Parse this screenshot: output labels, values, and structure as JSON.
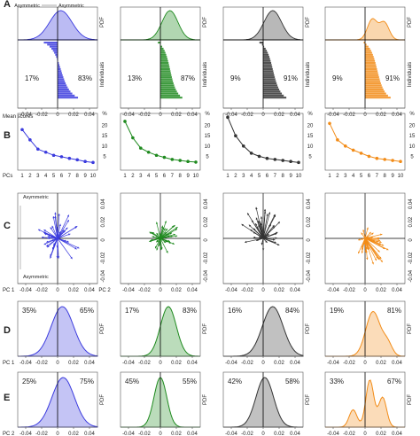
{
  "colors": {
    "p1": "#3b3bde",
    "p2": "#1f8a1f",
    "p3": "#333333",
    "p4": "#f28c18"
  },
  "labels": {
    "rows": [
      "A",
      "B",
      "C",
      "D",
      "E"
    ],
    "pdf": "PDF",
    "individuals": "Individuals",
    "mean_scores": "Mean scores",
    "pcs": "PCs",
    "pc1": "PC 1",
    "pc2": "PC 2",
    "percent": "%",
    "asym_left": "Asymmetric",
    "asym_right": "Asymmetric",
    "asym_top": "Asymmetric",
    "asym_bottom": "Asymmetric"
  },
  "chart_data": [
    {
      "panel": "A",
      "type": "area",
      "xlim": [
        -0.05,
        0.05
      ],
      "xticks": [
        -0.04,
        -0.02,
        0,
        0.02,
        0.04
      ],
      "tick_labels": [
        "-0.04",
        "-0.02",
        "0",
        "0.02",
        "0.04"
      ],
      "left_percent": [
        "17%",
        "13%",
        "9%",
        "9%"
      ],
      "right_percent": [
        "83%",
        "87%",
        "91%",
        "91%"
      ],
      "xlabel": "Mean scores",
      "ylabel_top": "PDF",
      "ylabel_bottom": "Individuals"
    },
    {
      "panel": "B",
      "type": "line",
      "x": [
        1,
        2,
        3,
        4,
        5,
        6,
        7,
        8,
        9,
        10
      ],
      "xticks": [
        "1",
        "2",
        "3",
        "4",
        "5",
        "6",
        "7",
        "8",
        "9",
        "10"
      ],
      "ylim": [
        0,
        25
      ],
      "yticks": [
        "5",
        "10",
        "15",
        "20"
      ],
      "xlabel": "PCs",
      "ylabel": "%",
      "series": [
        {
          "values": [
            18,
            13,
            8.5,
            7,
            5.5,
            4.8,
            4,
            3.3,
            2.5,
            2
          ]
        },
        {
          "values": [
            22,
            14,
            9,
            7,
            5.5,
            4.5,
            3.5,
            3,
            2.5,
            2.2
          ]
        },
        {
          "values": [
            24,
            15,
            10,
            6.5,
            5,
            4,
            3.5,
            3,
            2.5,
            2
          ]
        },
        {
          "values": [
            21,
            13,
            10,
            8,
            6.5,
            5,
            4,
            3.5,
            3,
            2.5
          ]
        }
      ]
    },
    {
      "panel": "C",
      "type": "scatter",
      "xlim": [
        -0.05,
        0.05
      ],
      "ylim": [
        -0.05,
        0.05
      ],
      "xticks": [
        "-0.04",
        "-0.02",
        "0",
        "0.02",
        "0.04"
      ],
      "yticks": [
        "0.04",
        "0.02",
        "0",
        "-0.02",
        "-0.04"
      ],
      "xlabel": "PC 1",
      "ylabel": "PC 2"
    },
    {
      "panel": "D",
      "type": "area",
      "xticks": [
        "-0.04",
        "-0.02",
        "0",
        "0.02",
        "0.04"
      ],
      "left_percent": [
        "35%",
        "17%",
        "16%",
        "19%"
      ],
      "right_percent": [
        "65%",
        "83%",
        "84%",
        "81%"
      ],
      "xlabel": "PC 1",
      "ylabel": "PDF"
    },
    {
      "panel": "E",
      "type": "area",
      "xticks": [
        "-0.04",
        "-0.02",
        "0",
        "0.02",
        "0.04"
      ],
      "left_percent": [
        "25%",
        "45%",
        "42%",
        "33%"
      ],
      "right_percent": [
        "75%",
        "55%",
        "58%",
        "67%"
      ],
      "xlabel": "PC 2",
      "ylabel": "PDF"
    }
  ]
}
